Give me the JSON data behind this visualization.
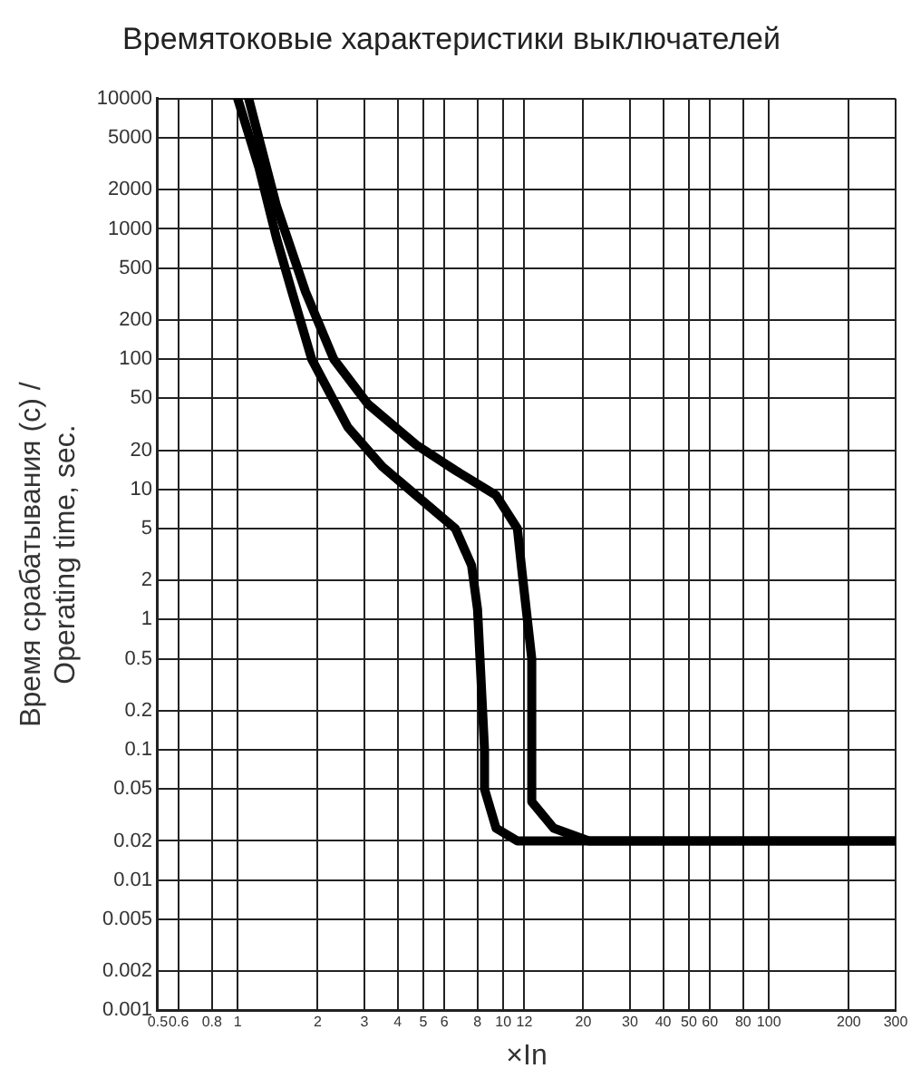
{
  "chart_data": {
    "type": "line",
    "title": "Времятоковые характеристики выключателей",
    "xlabel": "×In",
    "ylabel": "Время срабатывания (с) /\nOperating time, sec.",
    "log": "xy",
    "grid": true,
    "legend": false,
    "marker": "none",
    "line_style": "solid",
    "xlim": [
      0.5,
      300
    ],
    "ylim": [
      0.001,
      10000
    ],
    "xticks": [
      0.5,
      0.6,
      0.8,
      1,
      2,
      3,
      4,
      5,
      6,
      8,
      10,
      12,
      20,
      30,
      40,
      50,
      60,
      80,
      100,
      200,
      300
    ],
    "yticks": [
      0.001,
      0.002,
      0.005,
      0.01,
      0.02,
      0.05,
      0.1,
      0.2,
      0.5,
      1,
      2,
      5,
      10,
      20,
      50,
      100,
      200,
      500,
      1000,
      2000,
      5000,
      10000
    ],
    "series": [
      {
        "color": "#000000",
        "x": [
          1,
          1.2,
          1.4,
          1.6,
          1.9,
          2.6,
          3.5,
          4.7,
          6.6,
          7.6,
          8,
          8.5,
          8.5,
          9.4,
          11.3,
          300
        ],
        "values": [
          10000,
          3000,
          850,
          330,
          100,
          30,
          15,
          9,
          5,
          2.6,
          1.2,
          0.1,
          0.05,
          0.025,
          0.02,
          0.02
        ]
      },
      {
        "color": "#000000",
        "x": [
          1.1,
          1.4,
          1.8,
          2.3,
          3.1,
          4.7,
          6.6,
          9.4,
          11.3,
          11.8,
          12.8,
          12.8,
          15.5,
          21,
          300
        ],
        "values": [
          10000,
          1500,
          330,
          100,
          45,
          22,
          14,
          9,
          5,
          2.2,
          0.5,
          0.04,
          0.025,
          0.02,
          0.02
        ]
      }
    ]
  }
}
